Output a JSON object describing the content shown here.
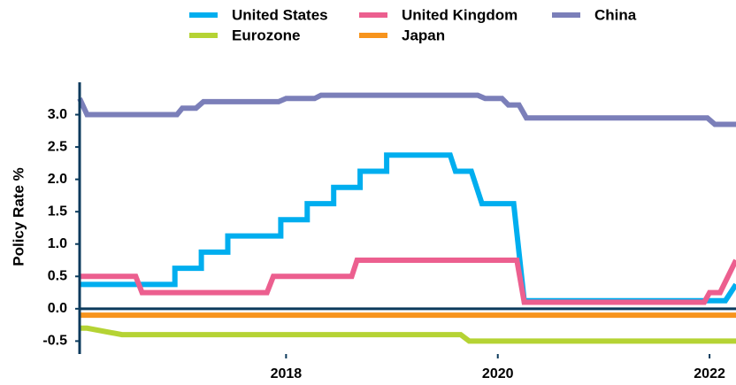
{
  "chart_data": {
    "type": "line",
    "y_label": "Policy Rate %",
    "ylim": [
      -0.7,
      3.5
    ],
    "yticks": [
      -0.5,
      {
        "value": 0,
        "label": "0.0"
      },
      0.5,
      {
        "value": 1,
        "label": "1.0"
      },
      1.5,
      {
        "value": 2,
        "label": "2.0"
      },
      2.5,
      {
        "value": 3,
        "label": "3.0"
      }
    ],
    "xlim": [
      2016.05,
      2022.25
    ],
    "xticks": [
      2018,
      2020,
      2022
    ],
    "legend": "top",
    "series": [
      {
        "name": "United States",
        "color": "#00aeef",
        "x": [
          2016.05,
          2016.95,
          2016.95,
          2017.2,
          2017.2,
          2017.45,
          2017.45,
          2017.95,
          2017.95,
          2018.2,
          2018.2,
          2018.45,
          2018.45,
          2018.7,
          2018.7,
          2018.95,
          2018.95,
          2019.55,
          2019.6,
          2019.75,
          2019.8,
          2019.85,
          2020.15,
          2020.25,
          2022.15,
          2022.25
        ],
        "values": [
          0.375,
          0.375,
          0.625,
          0.625,
          0.875,
          0.875,
          1.125,
          1.125,
          1.375,
          1.375,
          1.625,
          1.625,
          1.875,
          1.875,
          2.125,
          2.125,
          2.375,
          2.375,
          2.125,
          2.125,
          1.875,
          1.625,
          1.625,
          0.125,
          0.125,
          0.375
        ]
      },
      {
        "name": "United Kingdom",
        "color": "#ec5f8f",
        "x": [
          2016.05,
          2016.58,
          2016.64,
          2017.82,
          2017.88,
          2018.62,
          2018.67,
          2020.18,
          2020.25,
          2021.95,
          2022.0,
          2022.1,
          2022.25
        ],
        "values": [
          0.5,
          0.5,
          0.25,
          0.25,
          0.5,
          0.5,
          0.75,
          0.75,
          0.1,
          0.1,
          0.25,
          0.25,
          0.75
        ]
      },
      {
        "name": "China",
        "color": "#7b7fb9",
        "x": [
          2016.05,
          2016.12,
          2016.97,
          2017.02,
          2017.15,
          2017.22,
          2017.93,
          2018.0,
          2018.27,
          2018.33,
          2019.81,
          2019.88,
          2020.04,
          2020.1,
          2020.2,
          2020.27,
          2021.98,
          2022.05,
          2022.25
        ],
        "values": [
          3.25,
          3.0,
          3.0,
          3.1,
          3.1,
          3.2,
          3.2,
          3.25,
          3.25,
          3.3,
          3.3,
          3.25,
          3.25,
          3.15,
          3.15,
          2.95,
          2.95,
          2.85,
          2.85
        ]
      },
      {
        "name": "Eurozone",
        "color": "#b5d334",
        "x": [
          2016.05,
          2016.12,
          2016.45,
          2019.65,
          2019.73,
          2022.25
        ],
        "values": [
          -0.3,
          -0.3,
          -0.4,
          -0.4,
          -0.5,
          -0.5
        ]
      },
      {
        "name": "Japan",
        "color": "#f7941d",
        "x": [
          2016.05,
          2022.25
        ],
        "values": [
          -0.1,
          -0.1
        ]
      }
    ]
  }
}
